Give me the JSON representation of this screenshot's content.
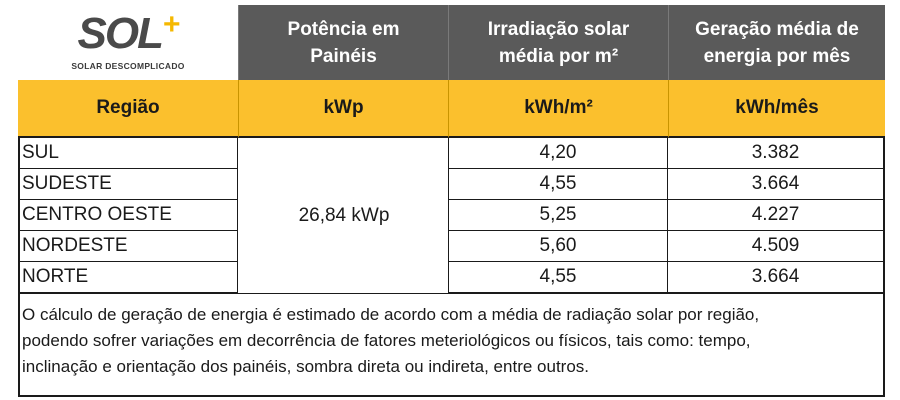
{
  "logo": {
    "main": "SOL",
    "plus": "+",
    "tagline": "SOLAR DESCOMPLICADO"
  },
  "header": {
    "col2": [
      "Potência em",
      "Painéis"
    ],
    "col3": [
      "Irradiação solar",
      "média por m²"
    ],
    "col4": [
      "Geração média de",
      "energia por mês"
    ]
  },
  "units": {
    "col1": "Região",
    "col2": "kWp",
    "col3": "kWh/m²",
    "col4": "kWh/mês"
  },
  "power": "26,84 kWp",
  "rows": [
    {
      "region": "SUL",
      "irradiation": "4,20",
      "generation": "3.382"
    },
    {
      "region": "SUDESTE",
      "irradiation": "4,55",
      "generation": "3.664"
    },
    {
      "region": "CENTRO OESTE",
      "irradiation": "5,25",
      "generation": "4.227"
    },
    {
      "region": "NORDESTE",
      "irradiation": "5,60",
      "generation": "4.509"
    },
    {
      "region": "NORTE",
      "irradiation": "4,55",
      "generation": "3.664"
    }
  ],
  "note": [
    "O cálculo de geração de energia é estimado de acordo com a média de radiação solar por região,",
    "podendo sofrer variações em decorrência de fatores meteriológicos ou físicos, tais como: tempo,",
    "inclinação e orientação dos painéis, sombra direta ou indireta, entre outros."
  ],
  "colors": {
    "header_dark": "#5a5a5a",
    "accent_yellow": "#fbc02d",
    "logo_gray": "#4a4a4a",
    "logo_plus": "#f5b800"
  }
}
